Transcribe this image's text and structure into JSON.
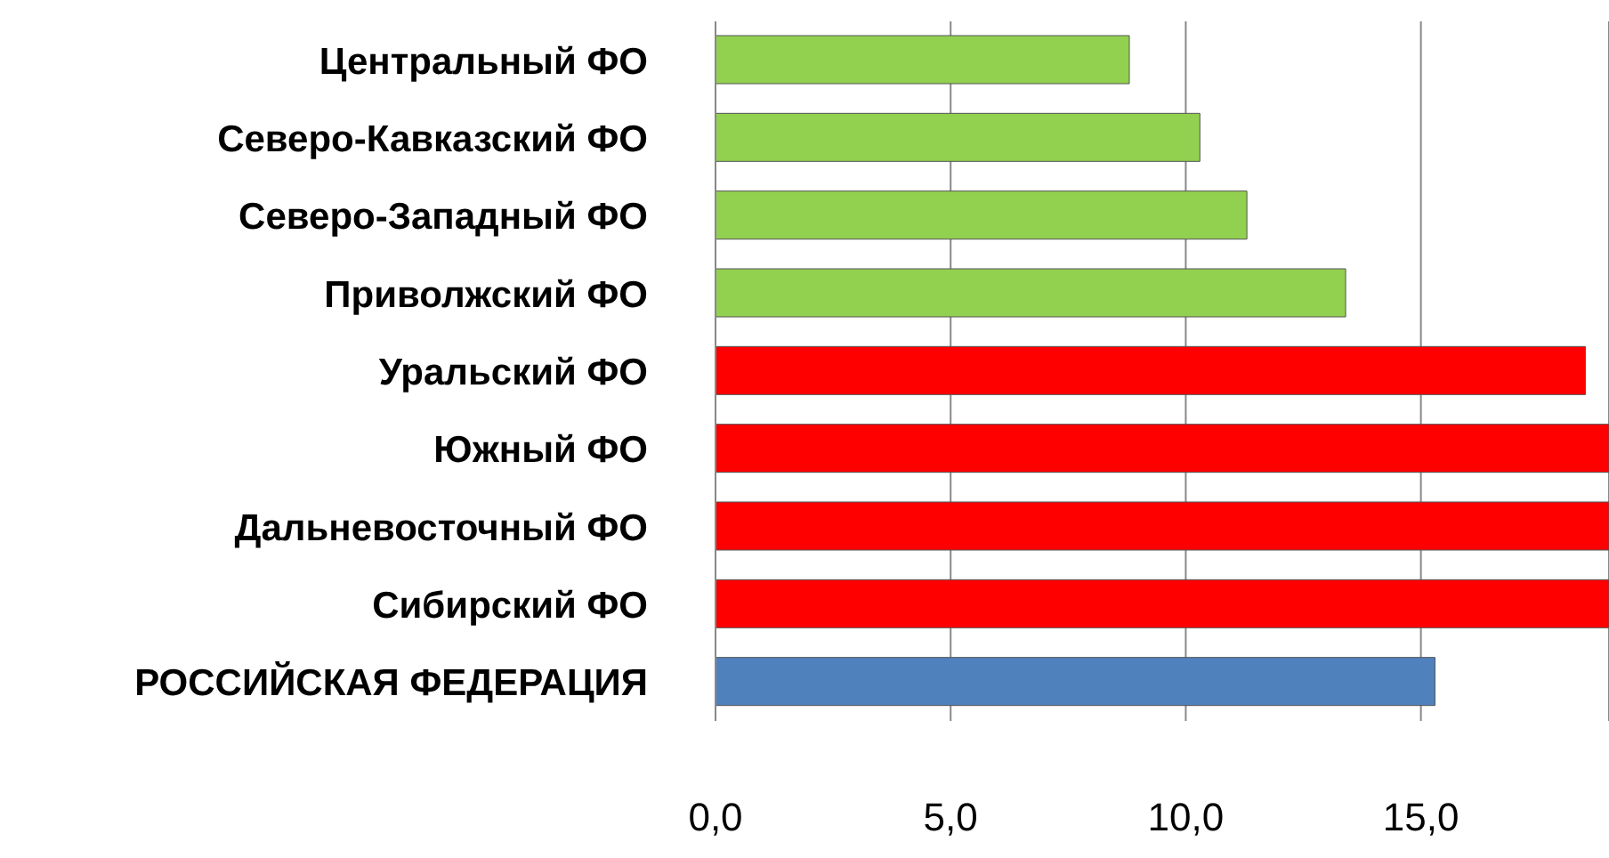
{
  "chart_data": {
    "type": "bar",
    "orientation": "horizontal",
    "categories": [
      "Центральный ФО",
      "Северо-Кавказский ФО",
      "Северо-Западный ФО",
      "Приволжский ФО",
      "Уральский ФО",
      "Южный ФО",
      "Дальневосточный ФО",
      "Сибирский ФО",
      "РОССИЙСКАЯ ФЕДЕРАЦИЯ"
    ],
    "values": [
      8.8,
      10.3,
      11.3,
      13.4,
      18.5,
      19,
      19,
      19,
      15.3
    ],
    "colors": [
      "#92d050",
      "#92d050",
      "#92d050",
      "#92d050",
      "#ff0000",
      "#ff0000",
      "#ff0000",
      "#ff0000",
      "#4f81bd"
    ],
    "xlim": [
      0,
      19
    ],
    "xticks": [
      {
        "value": 0,
        "label": "0,0"
      },
      {
        "value": 5,
        "label": "5,0"
      },
      {
        "value": 10,
        "label": "10,0"
      },
      {
        "value": 15,
        "label": "15,0"
      }
    ],
    "grid": "x"
  }
}
